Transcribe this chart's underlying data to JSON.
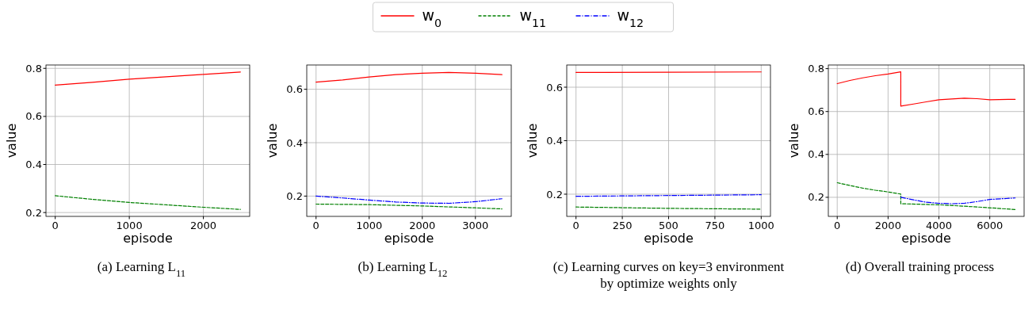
{
  "chart_data": [
    {
      "type": "line",
      "title": "(a) Learning L$_{11}$",
      "xlabel": "episode",
      "ylabel": "value",
      "xlim": [
        -125,
        2625
      ],
      "ylim": [
        0.184,
        0.814
      ],
      "xticks": [
        0,
        1000,
        2000
      ],
      "yticks": [
        0.2,
        0.4,
        0.6,
        0.8
      ],
      "grid": true,
      "series": [
        {
          "color": "#ff0000",
          "line_style": "solid",
          "x": [
            0,
            500,
            1000,
            1500,
            2000,
            2500
          ],
          "values": [
            0.73,
            0.742,
            0.755,
            0.765,
            0.775,
            0.785
          ]
        },
        {
          "color": "#008000",
          "line_style": "dashed",
          "x": [
            0,
            500,
            1000,
            1500,
            2000,
            2500
          ],
          "values": [
            0.27,
            0.255,
            0.242,
            0.232,
            0.222,
            0.213
          ]
        }
      ]
    },
    {
      "type": "line",
      "title": "(b) Learning L$_{12}$",
      "xlabel": "episode",
      "ylabel": "value",
      "xlim": [
        -175,
        3675
      ],
      "ylim": [
        0.124,
        0.691
      ],
      "xticks": [
        0,
        1000,
        2000,
        3000
      ],
      "yticks": [
        0.2,
        0.4,
        0.6
      ],
      "grid": true,
      "series": [
        {
          "color": "#ff0000",
          "line_style": "solid",
          "x": [
            0,
            500,
            1000,
            1500,
            2000,
            2500,
            3000,
            3500
          ],
          "values": [
            0.627,
            0.635,
            0.646,
            0.655,
            0.66,
            0.663,
            0.66,
            0.655
          ]
        },
        {
          "color": "#008000",
          "line_style": "dashed",
          "x": [
            0,
            1000,
            2000,
            3000,
            3500
          ],
          "values": [
            0.17,
            0.168,
            0.163,
            0.156,
            0.152
          ]
        },
        {
          "color": "#0000ff",
          "line_style": "dashdot",
          "x": [
            0,
            500,
            1000,
            1500,
            2000,
            2500,
            3000,
            3500
          ],
          "values": [
            0.2,
            0.193,
            0.185,
            0.178,
            0.174,
            0.173,
            0.179,
            0.19
          ]
        }
      ]
    },
    {
      "type": "line",
      "title": "(c) Learning curves on key=3 environment by optimize weights only",
      "xlabel": "episode",
      "ylabel": "value",
      "xlim": [
        -50,
        1050
      ],
      "ylim": [
        0.117,
        0.683
      ],
      "xticks": [
        0,
        250,
        500,
        750,
        1000
      ],
      "yticks": [
        0.2,
        0.4,
        0.6
      ],
      "grid": true,
      "series": [
        {
          "color": "#ff0000",
          "line_style": "solid",
          "x": [
            0,
            500,
            1000
          ],
          "values": [
            0.655,
            0.656,
            0.657
          ]
        },
        {
          "color": "#008000",
          "line_style": "dashed",
          "x": [
            0,
            500,
            1000
          ],
          "values": [
            0.152,
            0.147,
            0.144
          ]
        },
        {
          "color": "#0000ff",
          "line_style": "dashdot",
          "x": [
            0,
            500,
            1000
          ],
          "values": [
            0.192,
            0.195,
            0.198
          ]
        }
      ]
    },
    {
      "type": "line",
      "title": "(d) Overall training process",
      "xlabel": "episode",
      "ylabel": "value",
      "xlim": [
        -350,
        7350
      ],
      "ylim": [
        0.111,
        0.817
      ],
      "xticks": [
        0,
        2000,
        4000,
        6000
      ],
      "yticks": [
        0.2,
        0.4,
        0.6,
        0.8
      ],
      "grid": true,
      "legend": "top",
      "series": [
        {
          "name": "w$_{0}$",
          "color": "#ff0000",
          "line_style": "solid",
          "x": [
            0,
            500,
            1000,
            1500,
            2000,
            2500,
            2500,
            3000,
            3500,
            4000,
            5000,
            5500,
            6000,
            7000
          ],
          "values": [
            0.73,
            0.745,
            0.757,
            0.767,
            0.775,
            0.785,
            0.625,
            0.635,
            0.645,
            0.655,
            0.662,
            0.66,
            0.655,
            0.657
          ]
        },
        {
          "name": "w$_{11}$",
          "color": "#008000",
          "line_style": "dashed",
          "x": [
            0,
            500,
            1000,
            1500,
            2000,
            2500,
            2500,
            4000,
            5500,
            7000
          ],
          "values": [
            0.268,
            0.255,
            0.243,
            0.233,
            0.225,
            0.215,
            0.17,
            0.165,
            0.155,
            0.143
          ]
        },
        {
          "name": "w$_{12}$",
          "color": "#0000ff",
          "line_style": "dashdot",
          "x": [
            2500,
            3000,
            3500,
            4000,
            4500,
            5000,
            5500,
            6000,
            7000
          ],
          "values": [
            0.2,
            0.188,
            0.177,
            0.172,
            0.17,
            0.172,
            0.18,
            0.19,
            0.197
          ]
        }
      ]
    }
  ]
}
